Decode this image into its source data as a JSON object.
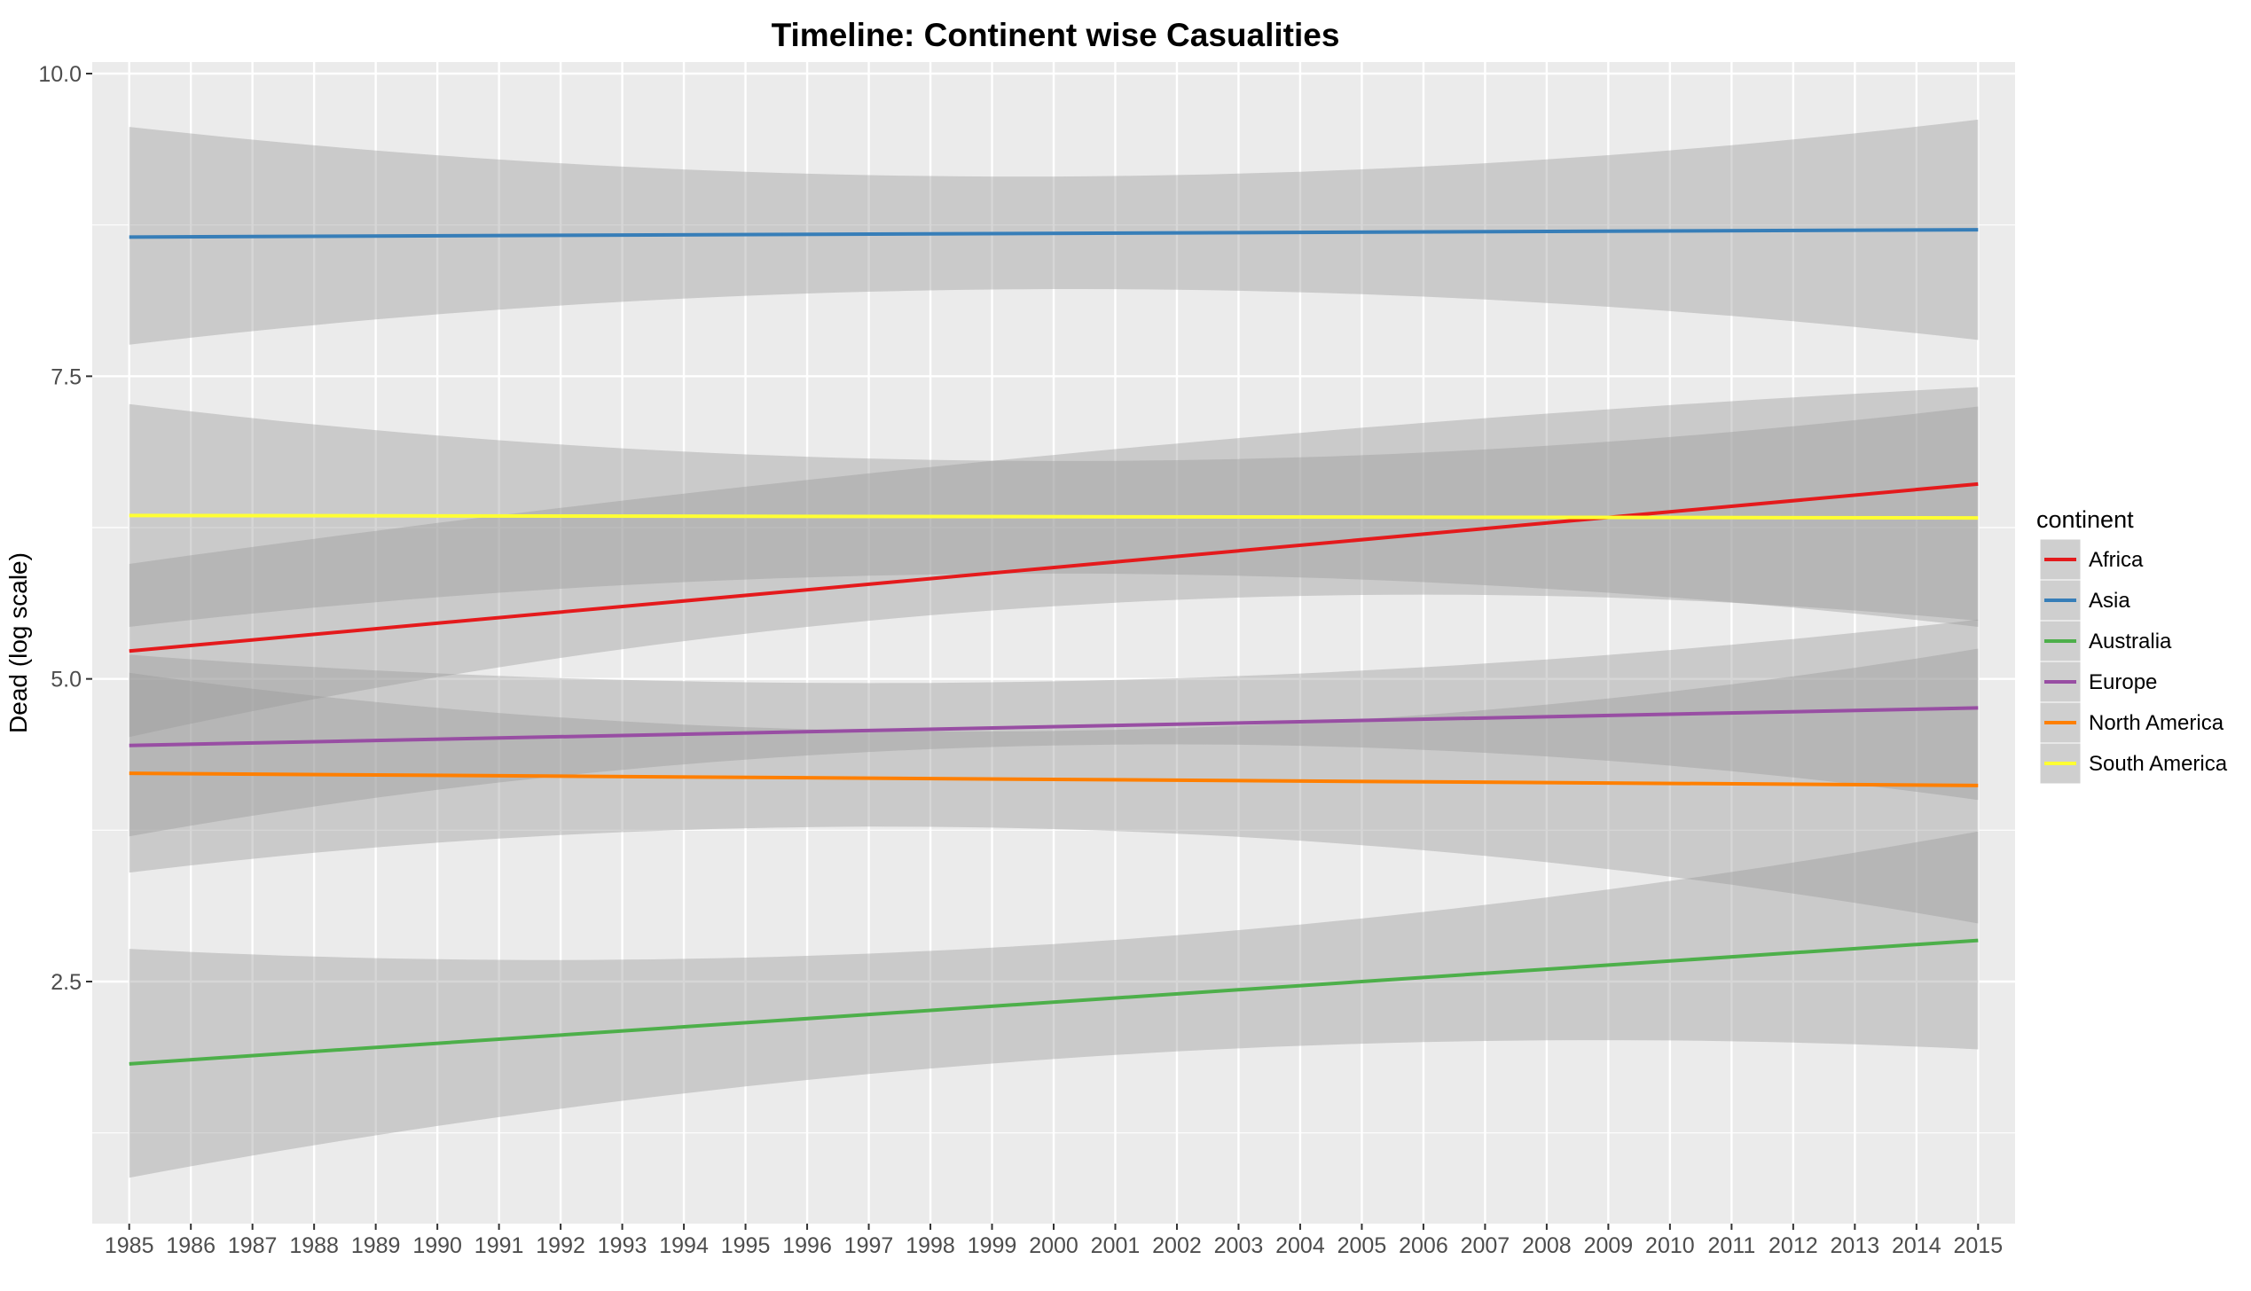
{
  "chart_data": {
    "type": "line",
    "title": "Timeline: Continent wise Casualities",
    "xlabel": "",
    "ylabel": "Dead (log scale)",
    "x": [
      1985,
      1986,
      1987,
      1988,
      1989,
      1990,
      1991,
      1992,
      1993,
      1994,
      1995,
      1996,
      1997,
      1998,
      1999,
      2000,
      2001,
      2002,
      2003,
      2004,
      2005,
      2006,
      2007,
      2008,
      2009,
      2010,
      2011,
      2012,
      2013,
      2014,
      2015
    ],
    "x_tick_labels": [
      "1985",
      "1986",
      "1987",
      "1988",
      "1989",
      "1990",
      "1991",
      "1992",
      "1993",
      "1994",
      "1995",
      "1996",
      "1997",
      "1998",
      "1999",
      "2000",
      "2001",
      "2002",
      "2003",
      "2004",
      "2005",
      "2006",
      "2007",
      "2008",
      "2009",
      "2010",
      "2011",
      "2012",
      "2013",
      "2014",
      "2015"
    ],
    "y_ticks": [
      2.5,
      5.0,
      7.5,
      10.0
    ],
    "y_tick_labels": [
      "2.5",
      "5.0",
      "7.5",
      "10.0"
    ],
    "xlim": [
      1984.4,
      2015.6
    ],
    "ylim": [
      0.85,
      10.0
    ],
    "grid": true,
    "legend": {
      "title": "continent",
      "position": "right"
    },
    "series": [
      {
        "name": "Africa",
        "color": "#e41a1c",
        "start": 5.23,
        "end": 6.61,
        "ci_lower": [
          4.52,
          5.6,
          5.48
        ],
        "ci_upper": [
          5.95,
          6.85,
          7.41
        ]
      },
      {
        "name": "Asia",
        "color": "#377eb8",
        "start": 8.65,
        "end": 8.71,
        "ci_lower": [
          7.76,
          8.22,
          7.8
        ],
        "ci_upper": [
          9.56,
          9.15,
          9.62
        ]
      },
      {
        "name": "Australia",
        "color": "#4daf4a",
        "start": 1.82,
        "end": 2.84,
        "ci_lower": [
          0.88,
          1.86,
          1.94
        ],
        "ci_upper": [
          2.77,
          2.81,
          3.74
        ]
      },
      {
        "name": "Europe",
        "color": "#984ea3",
        "start": 4.45,
        "end": 4.76,
        "ci_lower": [
          3.7,
          4.45,
          4.0
        ],
        "ci_upper": [
          5.2,
          4.98,
          5.49
        ]
      },
      {
        "name": "North America",
        "color": "#ff7f00",
        "start": 4.22,
        "end": 4.12,
        "ci_lower": [
          3.4,
          3.76,
          2.98
        ],
        "ci_upper": [
          5.05,
          4.57,
          5.25
        ]
      },
      {
        "name": "South America",
        "color": "#ffff33",
        "start": 6.35,
        "end": 6.33,
        "ci_lower": [
          5.43,
          5.87,
          5.43
        ],
        "ci_upper": [
          7.27,
          6.8,
          7.25
        ]
      }
    ]
  }
}
